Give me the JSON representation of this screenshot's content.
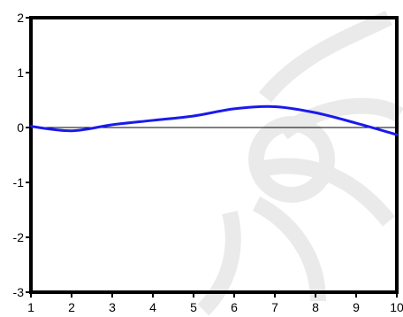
{
  "chart_data": {
    "type": "line",
    "title": "",
    "xlabel": "",
    "ylabel": "",
    "x": [
      1,
      2,
      3,
      4,
      5,
      6,
      7,
      8,
      9,
      10
    ],
    "series": [
      {
        "values": [
          0.02,
          -0.06,
          0.05,
          0.13,
          0.21,
          0.34,
          0.38,
          0.27,
          0.08,
          -0.13
        ],
        "color": "#1a1aee"
      }
    ],
    "xlim": [
      1,
      10
    ],
    "ylim": [
      -3,
      2
    ],
    "x_ticks": [
      "1",
      "2",
      "3",
      "4",
      "5",
      "6",
      "7",
      "8",
      "9",
      "10"
    ],
    "y_ticks": [
      "2",
      "1",
      "0",
      "-1",
      "-2",
      "-3"
    ],
    "y_tick_values": [
      2,
      1,
      0,
      -1,
      -2,
      -3
    ],
    "zero_line": true,
    "grid": false,
    "legend": "none",
    "axis_color": "#000000",
    "frame_watermark_icon": "swirl-watermark-icon"
  }
}
